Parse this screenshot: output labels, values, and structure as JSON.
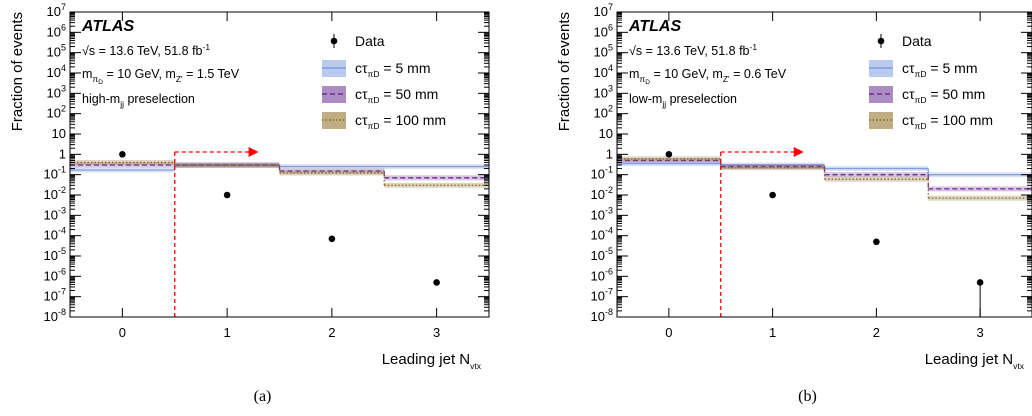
{
  "chart_data": [
    {
      "type": "step",
      "caption": "(a)",
      "label": "ATLAS",
      "info": {
        "energy": "√s = 13.6 TeV, 51.8 fb",
        "energy_sup": "-1",
        "mass_pre": "m",
        "mass_sub1": "π",
        "mass_sub2": "D",
        "mass_mid": " = 10 GeV, m",
        "mass_sub3": "Z'",
        "mass_post": " = 1.5 TeV",
        "sel_pre": "high-m",
        "sel_sub": "jj",
        "sel_post": " preselection"
      },
      "ylabel": "Fraction of events",
      "xlabel": "Leading jet N",
      "xlabel_sub": "vtx",
      "yscale": "log",
      "ylim": [
        1e-08,
        10000000.0
      ],
      "categories": [
        "0",
        "1",
        "2",
        "3"
      ],
      "legend": [
        {
          "label": "Data",
          "style": "marker"
        },
        {
          "label": "cτ",
          "sub": "πD",
          "post": " = 5 mm",
          "color": "#7f9fe0",
          "style": "solid"
        },
        {
          "label": "cτ",
          "sub": "πD",
          "post": " = 50 mm",
          "color": "#6a2c91",
          "style": "dashed"
        },
        {
          "label": "cτ",
          "sub": "πD",
          "post": " = 100 mm",
          "color": "#8a6a1e",
          "style": "dotted"
        }
      ],
      "data": [
        1.0,
        0.01,
        7e-05,
        5e-07
      ],
      "data_err_low": [
        0,
        0,
        0,
        0
      ],
      "series": [
        {
          "name": "cτπD = 5 mm",
          "values": [
            0.17,
            0.3,
            0.25,
            0.25
          ],
          "color": "#7f9fe0",
          "style": "solid"
        },
        {
          "name": "cτπD = 50 mm",
          "values": [
            0.3,
            0.3,
            0.15,
            0.07
          ],
          "color": "#6a2c91",
          "style": "dashed"
        },
        {
          "name": "cτπD = 100 mm",
          "values": [
            0.4,
            0.28,
            0.12,
            0.03
          ],
          "color": "#8a6a1e",
          "style": "dotted"
        }
      ],
      "cut": {
        "x_bin_edge": 0.5,
        "arrow_to": 1.3,
        "y": 1.3,
        "color": "#ff0000"
      }
    },
    {
      "type": "step",
      "caption": "(b)",
      "label": "ATLAS",
      "info": {
        "energy": "√s = 13.6 TeV, 51.8 fb",
        "energy_sup": "-1",
        "mass_pre": "m",
        "mass_sub1": "π",
        "mass_sub2": "D",
        "mass_mid": " = 10 GeV, m",
        "mass_sub3": "Z'",
        "mass_post": " = 0.6 TeV",
        "sel_pre": "low-m",
        "sel_sub": "jj",
        "sel_post": " preselection"
      },
      "ylabel": "Fraction of events",
      "xlabel": "Leading jet N",
      "xlabel_sub": "vtx",
      "yscale": "log",
      "ylim": [
        1e-08,
        10000000.0
      ],
      "categories": [
        "0",
        "1",
        "2",
        "3"
      ],
      "legend": [
        {
          "label": "Data",
          "style": "marker"
        },
        {
          "label": "cτ",
          "sub": "πD",
          "post": " = 5 mm",
          "color": "#7f9fe0",
          "style": "solid"
        },
        {
          "label": "cτ",
          "sub": "πD",
          "post": " = 50 mm",
          "color": "#6a2c91",
          "style": "dashed"
        },
        {
          "label": "cτ",
          "sub": "πD",
          "post": " = 100 mm",
          "color": "#8a6a1e",
          "style": "dotted"
        }
      ],
      "data": [
        1.0,
        0.01,
        5e-05,
        5e-07
      ],
      "data_err_low": [
        0,
        0,
        0,
        1e-08
      ],
      "series": [
        {
          "name": "cτπD = 5 mm",
          "values": [
            0.35,
            0.3,
            0.2,
            0.1
          ],
          "color": "#7f9fe0",
          "style": "solid"
        },
        {
          "name": "cτπD = 50 mm",
          "values": [
            0.5,
            0.25,
            0.1,
            0.02
          ],
          "color": "#6a2c91",
          "style": "dashed"
        },
        {
          "name": "cτπD = 100 mm",
          "values": [
            0.6,
            0.22,
            0.06,
            0.007
          ],
          "color": "#8a6a1e",
          "style": "dotted"
        }
      ],
      "cut": {
        "x_bin_edge": 0.5,
        "arrow_to": 1.3,
        "y": 1.3,
        "color": "#ff0000"
      }
    }
  ]
}
